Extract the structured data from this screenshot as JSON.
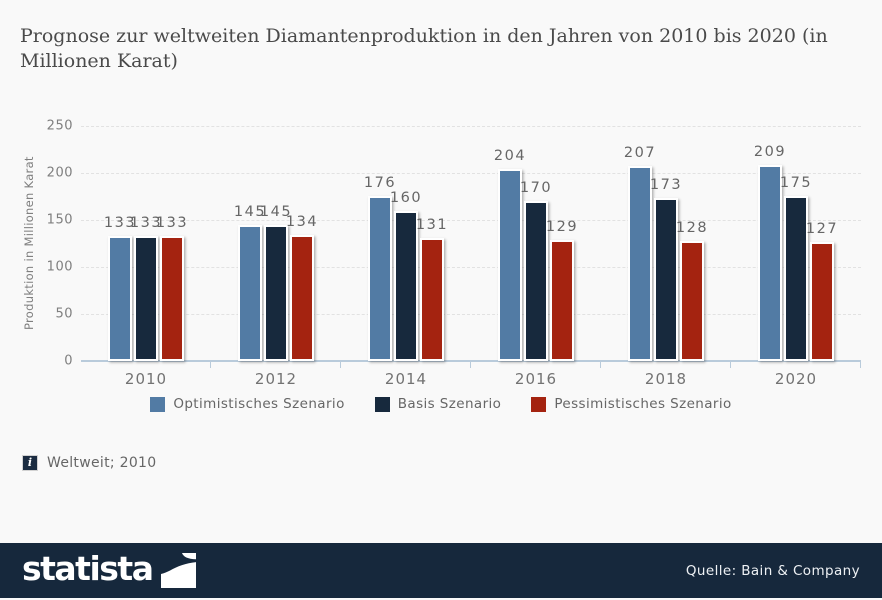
{
  "title": "Prognose zur weltweiten Diamantenproduktion in den Jahren von 2010 bis 2020 (in Millionen Karat)",
  "chart_data": {
    "type": "bar",
    "categories": [
      "2010",
      "2012",
      "2014",
      "2016",
      "2018",
      "2020"
    ],
    "series": [
      {
        "name": "Optimistisches Szenario",
        "color": "#527ba4",
        "values": [
          133,
          145,
          176,
          204,
          207,
          209
        ]
      },
      {
        "name": "Basis Szenario",
        "color": "#17293d",
        "values": [
          133,
          145,
          160,
          170,
          173,
          175
        ]
      },
      {
        "name": "Pessimistisches Szenario",
        "color": "#a42310",
        "values": [
          133,
          134,
          131,
          129,
          128,
          127
        ]
      }
    ],
    "title": "Prognose zur weltweiten Diamantenproduktion in den Jahren von 2010 bis 2020 (in Millionen Karat)",
    "xlabel": "",
    "ylabel": "Produktion in Millionen Karat",
    "ylim": [
      0,
      250
    ],
    "yticks": [
      0,
      50,
      100,
      150,
      200,
      250
    ],
    "grid": true,
    "gridstyle": "dashed",
    "legend_position": "bottom",
    "bar_value_labels": true
  },
  "footnote": {
    "info_icon_glyph": "i",
    "text": "Weltweit; 2010"
  },
  "footer": {
    "brand": "statista",
    "source": "Quelle: Bain & Company"
  },
  "colors": {
    "background": "#f9f9f9",
    "footer_bg": "#16283c",
    "axis_line": "#b9cbdb",
    "axis_text": "#7f7f7f",
    "value_label_text": "#666666",
    "series_optimistic": "#527ba4",
    "series_basis": "#17293d",
    "series_pessimistic": "#a42310"
  }
}
